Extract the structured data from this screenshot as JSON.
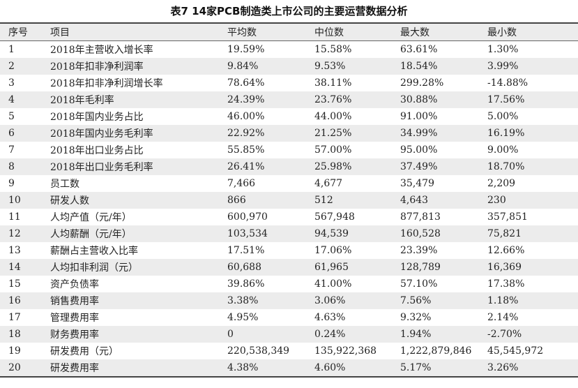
{
  "title": "表7  14家PCB制造类上市公司的主要运营数据分析",
  "headers": [
    "序号",
    "项目",
    "平均数",
    "中位数",
    "最大数",
    "最小数"
  ],
  "rows": [
    [
      "1",
      "2018年主营收入增长率",
      "19.59%",
      "15.58%",
      "63.61%",
      "1.30%"
    ],
    [
      "2",
      "2018年扣非净利润率",
      "9.84%",
      "9.53%",
      "18.54%",
      "3.99%"
    ],
    [
      "3",
      "2018年扣非净利润增长率",
      "78.64%",
      "38.11%",
      "299.28%",
      "-14.88%"
    ],
    [
      "4",
      "2018年毛利率",
      "24.39%",
      "23.76%",
      "30.88%",
      "17.56%"
    ],
    [
      "5",
      "2018年国内业务占比",
      "46.00%",
      "44.00%",
      "91.00%",
      "5.00%"
    ],
    [
      "6",
      "2018年国内业务毛利率",
      "22.92%",
      "21.25%",
      "34.99%",
      "16.19%"
    ],
    [
      "7",
      "2018年出口业务占比",
      "55.85%",
      "57.00%",
      "95.00%",
      "9.00%"
    ],
    [
      "8",
      "2018年出口业务毛利率",
      "26.41%",
      "25.98%",
      "37.49%",
      "18.70%"
    ],
    [
      "9",
      "员工数",
      "7,466",
      "4,677",
      "35,479",
      "2,209"
    ],
    [
      "10",
      "研发人数",
      "866",
      "512",
      "4,643",
      "230"
    ],
    [
      "11",
      "人均产值（元/年）",
      "600,970",
      "567,948",
      "877,813",
      "357,851"
    ],
    [
      "12",
      "人均薪酬（元/年）",
      "103,534",
      "94,539",
      "160,528",
      "75,821"
    ],
    [
      "13",
      "薪酬占主营收入比率",
      "17.51%",
      "17.06%",
      "23.39%",
      "12.66%"
    ],
    [
      "14",
      "人均扣非利润（元）",
      "60,688",
      "61,965",
      "128,789",
      "16,369"
    ],
    [
      "15",
      "资产负债率",
      "39.86%",
      "41.00%",
      "57.10%",
      "17.38%"
    ],
    [
      "16",
      "销售费用率",
      "3.38%",
      "3.06%",
      "7.56%",
      "1.18%"
    ],
    [
      "17",
      "管理费用率",
      "4.95%",
      "4.63%",
      "9.32%",
      "2.14%"
    ],
    [
      "18",
      "财务费用率",
      "0",
      "0.24%",
      "1.94%",
      "-2.70%"
    ],
    [
      "19",
      "研发费用（元）",
      "220,538,349",
      "135,922,368",
      "1,222,879,846",
      "45,545,972"
    ],
    [
      "20",
      "研发费用率",
      "4.38%",
      "4.60%",
      "5.17%",
      "3.26%"
    ]
  ]
}
